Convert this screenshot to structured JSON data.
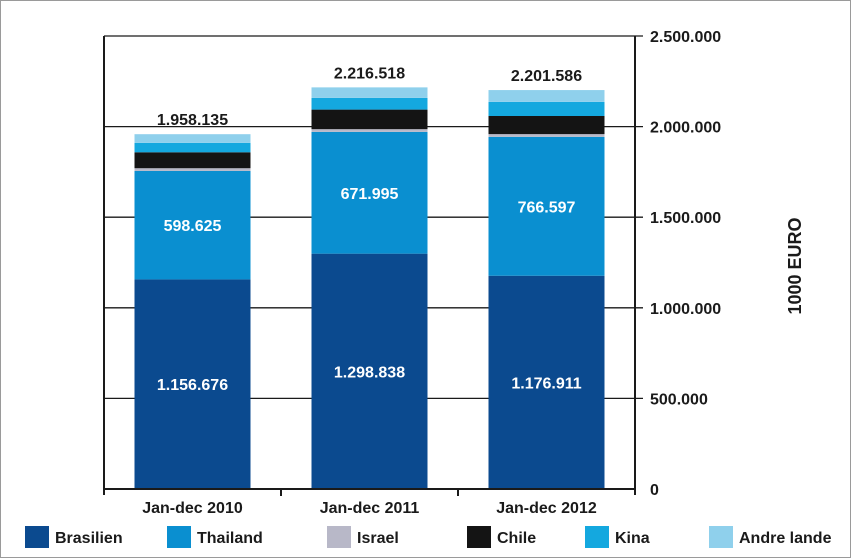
{
  "chart_data": {
    "type": "bar",
    "stacked": true,
    "categories": [
      "Jan-dec 2010",
      "Jan-dec 2011",
      "Jan-dec 2012"
    ],
    "series": [
      {
        "name": "Brasilien",
        "color": "#0b4a8f",
        "values": [
          1156676,
          1298838,
          1176911
        ],
        "labels": [
          "1.156.676",
          "1.298.838",
          "1.176.911"
        ]
      },
      {
        "name": "Thailand",
        "color": "#0a8fd0",
        "values": [
          598625,
          671995,
          766597
        ],
        "labels": [
          "598.625",
          "671.995",
          "766.597"
        ]
      },
      {
        "name": "Israel",
        "color": "#b8b8c8",
        "values": [
          15000,
          15000,
          15000
        ]
      },
      {
        "name": "Chile",
        "color": "#141414",
        "values": [
          88000,
          108000,
          100000
        ]
      },
      {
        "name": "Kina",
        "color": "#14a8df",
        "values": [
          52000,
          65000,
          78000
        ]
      },
      {
        "name": "Andre lande",
        "color": "#8fd0ec",
        "values": [
          47834,
          57685,
          65078
        ]
      }
    ],
    "totals": [
      "1.958.135",
      "2.216.518",
      "2.201.586"
    ],
    "total_values": [
      1958135,
      2216518,
      2201586
    ],
    "ylabel": "1000 EURO",
    "ylim": [
      0,
      2500000
    ],
    "yticks": [
      0,
      500000,
      1000000,
      1500000,
      2000000,
      2500000
    ],
    "ytick_labels": [
      "0",
      "500.000",
      "1.000.000",
      "1.500.000",
      "2.000.000",
      "2.500.000"
    ],
    "y_axis_side": "right",
    "grid": true,
    "legend_position": "bottom"
  }
}
